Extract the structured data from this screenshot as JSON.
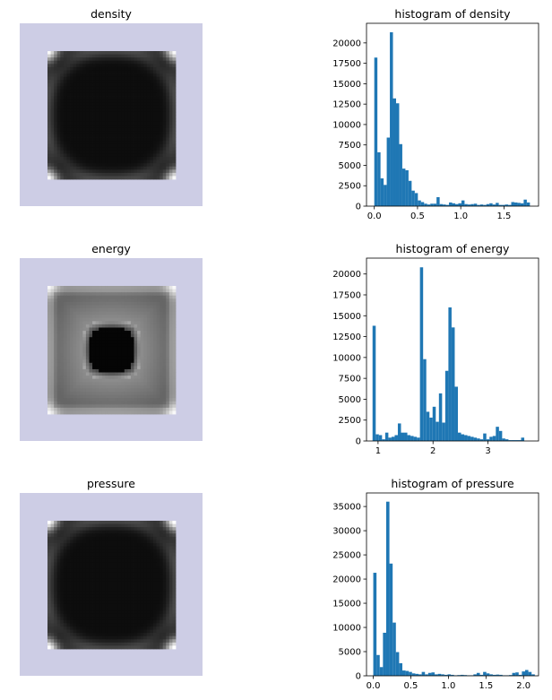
{
  "figure": {
    "background": "#ffffff",
    "pad_color": "#cdcde5",
    "bar_color": "#1f77b4"
  },
  "panels": [
    {
      "image_title": "density",
      "hist_title": "histogram of density",
      "pattern": "density"
    },
    {
      "image_title": "energy",
      "hist_title": "histogram of energy",
      "pattern": "energy"
    },
    {
      "image_title": "pressure",
      "hist_title": "histogram of pressure",
      "pattern": "pressure"
    }
  ],
  "chart_data": [
    {
      "type": "bar",
      "title": "histogram of density",
      "xlabel": "",
      "ylabel": "",
      "xlim": [
        -0.09,
        1.9
      ],
      "ylim": [
        0,
        22400
      ],
      "xticks": [
        0.0,
        0.5,
        1.0,
        1.5
      ],
      "xtick_labels": [
        "0.0",
        "0.5",
        "1.0",
        "1.5"
      ],
      "yticks": [
        0,
        2500,
        5000,
        7500,
        10000,
        12500,
        15000,
        17500,
        20000
      ],
      "ytick_labels": [
        "0",
        "2500",
        "5000",
        "7500",
        "10000",
        "12500",
        "15000",
        "17500",
        "20000"
      ],
      "bin_start": 0.0,
      "bin_width": 0.036,
      "values": [
        18200,
        6600,
        3400,
        2600,
        8400,
        21300,
        13200,
        12600,
        7600,
        4600,
        4400,
        3100,
        1900,
        1600,
        700,
        500,
        300,
        200,
        300,
        300,
        1100,
        250,
        200,
        150,
        450,
        350,
        250,
        350,
        700,
        250,
        200,
        250,
        300,
        150,
        200,
        150,
        250,
        350,
        200,
        400,
        150,
        150,
        200,
        150,
        500,
        450,
        400,
        350,
        800,
        450
      ],
      "grid": false
    },
    {
      "type": "bar",
      "title": "histogram of energy",
      "xlabel": "",
      "ylabel": "",
      "xlim": [
        0.79,
        3.92
      ],
      "ylim": [
        0,
        21900
      ],
      "xticks": [
        1,
        2,
        3
      ],
      "xtick_labels": [
        "1",
        "2",
        "3"
      ],
      "yticks": [
        0,
        2500,
        5000,
        7500,
        10000,
        12500,
        15000,
        17500,
        20000
      ],
      "ytick_labels": [
        "0",
        "2500",
        "5000",
        "7500",
        "10000",
        "12500",
        "15000",
        "17500",
        "20000"
      ],
      "bin_start": 0.9,
      "bin_width": 0.0575,
      "values": [
        13800,
        800,
        700,
        200,
        1000,
        400,
        500,
        700,
        2100,
        1000,
        1000,
        700,
        600,
        500,
        400,
        20800,
        9800,
        3500,
        2800,
        4100,
        2300,
        5700,
        2200,
        8400,
        16000,
        13600,
        6500,
        1000,
        800,
        700,
        600,
        500,
        400,
        300,
        200,
        900,
        200,
        500,
        600,
        1700,
        1200,
        300,
        200,
        100,
        100,
        100,
        100,
        400
      ],
      "grid": false
    },
    {
      "type": "bar",
      "title": "histogram of pressure",
      "xlabel": "",
      "ylabel": "",
      "xlim": [
        -0.09,
        2.2
      ],
      "ylim": [
        0,
        37800
      ],
      "xticks": [
        0.0,
        0.5,
        1.0,
        1.5,
        2.0
      ],
      "xtick_labels": [
        "0.0",
        "0.5",
        "1.0",
        "1.5",
        "2.0"
      ],
      "yticks": [
        0,
        5000,
        10000,
        15000,
        20000,
        25000,
        30000,
        35000
      ],
      "ytick_labels": [
        "0",
        "5000",
        "10000",
        "15000",
        "20000",
        "25000",
        "30000",
        "35000"
      ],
      "bin_start": 0.0,
      "bin_width": 0.043,
      "values": [
        21300,
        4300,
        1800,
        8900,
        36000,
        23200,
        11000,
        4900,
        2600,
        1100,
        1000,
        800,
        500,
        400,
        300,
        800,
        300,
        600,
        700,
        300,
        400,
        300,
        200,
        300,
        200,
        100,
        150,
        200,
        150,
        100,
        100,
        300,
        600,
        200,
        800,
        500,
        300,
        200,
        250,
        200,
        100,
        100,
        150,
        600,
        700,
        200,
        900,
        1200,
        800,
        300
      ],
      "grid": false
    }
  ]
}
